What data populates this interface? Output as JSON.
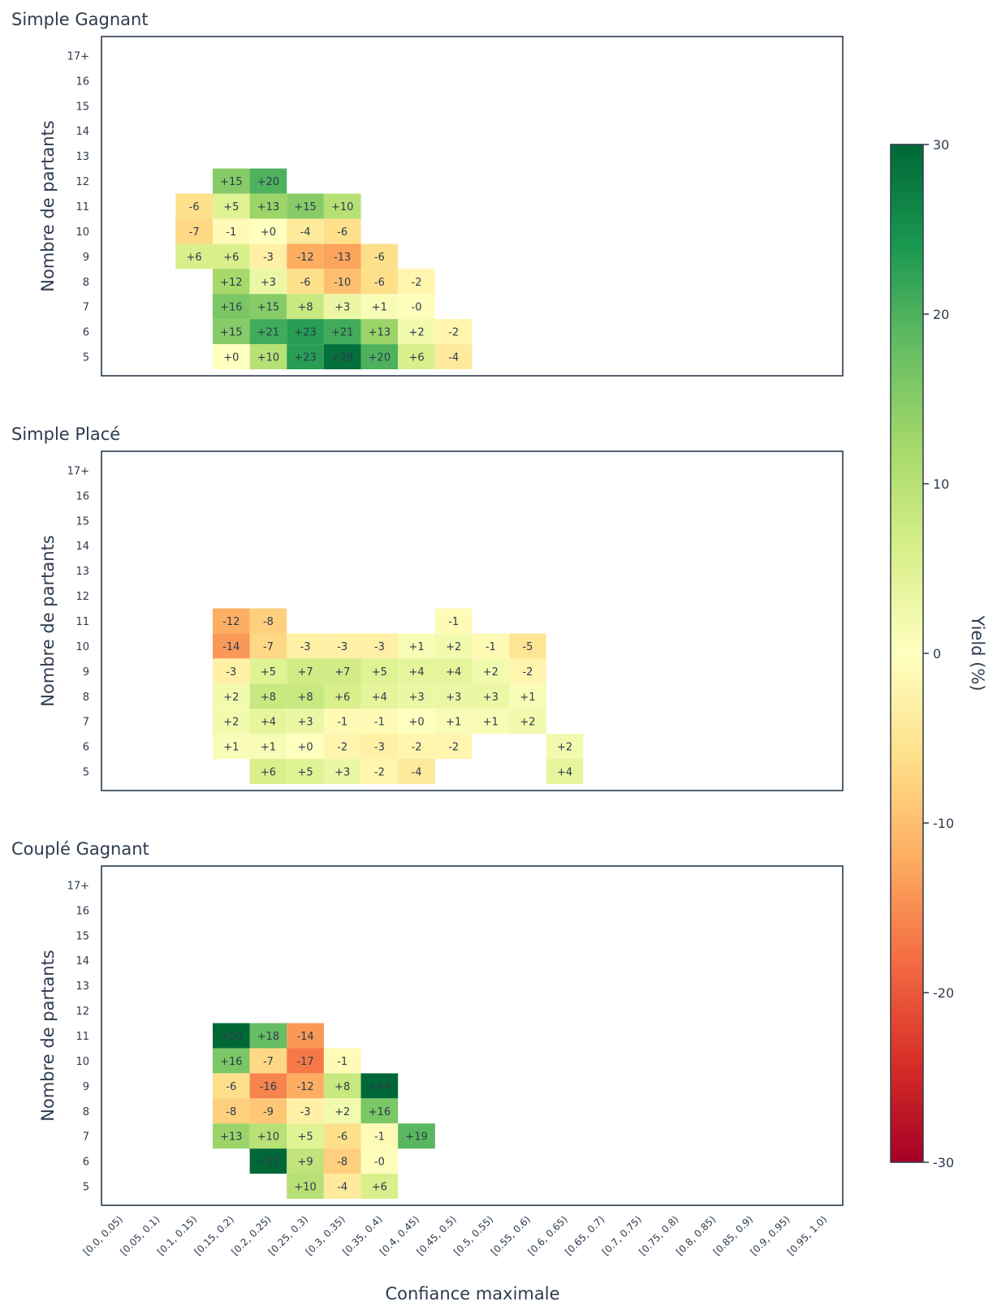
{
  "chart_data": {
    "type": "heatmap",
    "panels": [
      {
        "title": "Simple Gagnant",
        "ylabel": "Nombre de partants",
        "cells": [
          {
            "row": "12",
            "col": 3,
            "value": 15,
            "label": "+15"
          },
          {
            "row": "12",
            "col": 4,
            "value": 20,
            "label": "+20"
          },
          {
            "row": "11",
            "col": 2,
            "value": -6,
            "label": "-6"
          },
          {
            "row": "11",
            "col": 3,
            "value": 5,
            "label": "+5"
          },
          {
            "row": "11",
            "col": 4,
            "value": 13,
            "label": "+13"
          },
          {
            "row": "11",
            "col": 5,
            "value": 15,
            "label": "+15"
          },
          {
            "row": "11",
            "col": 6,
            "value": 10,
            "label": "+10"
          },
          {
            "row": "10",
            "col": 2,
            "value": -7,
            "label": "-7"
          },
          {
            "row": "10",
            "col": 3,
            "value": -1,
            "label": "-1"
          },
          {
            "row": "10",
            "col": 4,
            "value": 0,
            "label": "+0"
          },
          {
            "row": "10",
            "col": 5,
            "value": -4,
            "label": "-4"
          },
          {
            "row": "10",
            "col": 6,
            "value": -6,
            "label": "-6"
          },
          {
            "row": "9",
            "col": 2,
            "value": 6,
            "label": "+6"
          },
          {
            "row": "9",
            "col": 3,
            "value": 6,
            "label": "+6"
          },
          {
            "row": "9",
            "col": 4,
            "value": -3,
            "label": "-3"
          },
          {
            "row": "9",
            "col": 5,
            "value": -12,
            "label": "-12"
          },
          {
            "row": "9",
            "col": 6,
            "value": -13,
            "label": "-13"
          },
          {
            "row": "9",
            "col": 7,
            "value": -6,
            "label": "-6"
          },
          {
            "row": "8",
            "col": 3,
            "value": 12,
            "label": "+12"
          },
          {
            "row": "8",
            "col": 4,
            "value": 3,
            "label": "+3"
          },
          {
            "row": "8",
            "col": 5,
            "value": -6,
            "label": "-6"
          },
          {
            "row": "8",
            "col": 6,
            "value": -10,
            "label": "-10"
          },
          {
            "row": "8",
            "col": 7,
            "value": -6,
            "label": "-6"
          },
          {
            "row": "8",
            "col": 8,
            "value": -2,
            "label": "-2"
          },
          {
            "row": "7",
            "col": 3,
            "value": 16,
            "label": "+16"
          },
          {
            "row": "7",
            "col": 4,
            "value": 15,
            "label": "+15"
          },
          {
            "row": "7",
            "col": 5,
            "value": 8,
            "label": "+8"
          },
          {
            "row": "7",
            "col": 6,
            "value": 3,
            "label": "+3"
          },
          {
            "row": "7",
            "col": 7,
            "value": 1,
            "label": "+1"
          },
          {
            "row": "7",
            "col": 8,
            "value": -0.3,
            "label": "-0"
          },
          {
            "row": "6",
            "col": 3,
            "value": 15,
            "label": "+15"
          },
          {
            "row": "6",
            "col": 4,
            "value": 21,
            "label": "+21"
          },
          {
            "row": "6",
            "col": 5,
            "value": 23,
            "label": "+23"
          },
          {
            "row": "6",
            "col": 6,
            "value": 21,
            "label": "+21"
          },
          {
            "row": "6",
            "col": 7,
            "value": 13,
            "label": "+13"
          },
          {
            "row": "6",
            "col": 8,
            "value": 2,
            "label": "+2"
          },
          {
            "row": "6",
            "col": 9,
            "value": -2,
            "label": "-2"
          },
          {
            "row": "5",
            "col": 3,
            "value": 0,
            "label": "+0"
          },
          {
            "row": "5",
            "col": 4,
            "value": 10,
            "label": "+10"
          },
          {
            "row": "5",
            "col": 5,
            "value": 23,
            "label": "+23"
          },
          {
            "row": "5",
            "col": 6,
            "value": 29,
            "label": "+29"
          },
          {
            "row": "5",
            "col": 7,
            "value": 20,
            "label": "+20"
          },
          {
            "row": "5",
            "col": 8,
            "value": 6,
            "label": "+6"
          },
          {
            "row": "5",
            "col": 9,
            "value": -4,
            "label": "-4"
          }
        ]
      },
      {
        "title": "Simple Placé",
        "ylabel": "Nombre de partants",
        "cells": [
          {
            "row": "11",
            "col": 3,
            "value": -12,
            "label": "-12"
          },
          {
            "row": "11",
            "col": 4,
            "value": -8,
            "label": "-8"
          },
          {
            "row": "11",
            "col": 9,
            "value": -1,
            "label": "-1"
          },
          {
            "row": "10",
            "col": 3,
            "value": -14,
            "label": "-14"
          },
          {
            "row": "10",
            "col": 4,
            "value": -7,
            "label": "-7"
          },
          {
            "row": "10",
            "col": 5,
            "value": -3,
            "label": "-3"
          },
          {
            "row": "10",
            "col": 6,
            "value": -3,
            "label": "-3"
          },
          {
            "row": "10",
            "col": 7,
            "value": -3,
            "label": "-3"
          },
          {
            "row": "10",
            "col": 8,
            "value": 1,
            "label": "+1"
          },
          {
            "row": "10",
            "col": 9,
            "value": 2,
            "label": "+2"
          },
          {
            "row": "10",
            "col": 10,
            "value": -1,
            "label": "-1"
          },
          {
            "row": "10",
            "col": 11,
            "value": -5,
            "label": "-5"
          },
          {
            "row": "9",
            "col": 3,
            "value": -3,
            "label": "-3"
          },
          {
            "row": "9",
            "col": 4,
            "value": 5,
            "label": "+5"
          },
          {
            "row": "9",
            "col": 5,
            "value": 7,
            "label": "+7"
          },
          {
            "row": "9",
            "col": 6,
            "value": 7,
            "label": "+7"
          },
          {
            "row": "9",
            "col": 7,
            "value": 5,
            "label": "+5"
          },
          {
            "row": "9",
            "col": 8,
            "value": 4,
            "label": "+4"
          },
          {
            "row": "9",
            "col": 9,
            "value": 4,
            "label": "+4"
          },
          {
            "row": "9",
            "col": 10,
            "value": 2,
            "label": "+2"
          },
          {
            "row": "9",
            "col": 11,
            "value": -2,
            "label": "-2"
          },
          {
            "row": "8",
            "col": 3,
            "value": 2,
            "label": "+2"
          },
          {
            "row": "8",
            "col": 4,
            "value": 8,
            "label": "+8"
          },
          {
            "row": "8",
            "col": 5,
            "value": 8,
            "label": "+8"
          },
          {
            "row": "8",
            "col": 6,
            "value": 6,
            "label": "+6"
          },
          {
            "row": "8",
            "col": 7,
            "value": 4,
            "label": "+4"
          },
          {
            "row": "8",
            "col": 8,
            "value": 3,
            "label": "+3"
          },
          {
            "row": "8",
            "col": 9,
            "value": 3,
            "label": "+3"
          },
          {
            "row": "8",
            "col": 10,
            "value": 3,
            "label": "+3"
          },
          {
            "row": "8",
            "col": 11,
            "value": 1,
            "label": "+1"
          },
          {
            "row": "7",
            "col": 3,
            "value": 2,
            "label": "+2"
          },
          {
            "row": "7",
            "col": 4,
            "value": 4,
            "label": "+4"
          },
          {
            "row": "7",
            "col": 5,
            "value": 3,
            "label": "+3"
          },
          {
            "row": "7",
            "col": 6,
            "value": -1,
            "label": "-1"
          },
          {
            "row": "7",
            "col": 7,
            "value": -1,
            "label": "-1"
          },
          {
            "row": "7",
            "col": 8,
            "value": 0,
            "label": "+0"
          },
          {
            "row": "7",
            "col": 9,
            "value": 1,
            "label": "+1"
          },
          {
            "row": "7",
            "col": 10,
            "value": 1,
            "label": "+1"
          },
          {
            "row": "7",
            "col": 11,
            "value": 2,
            "label": "+2"
          },
          {
            "row": "6",
            "col": 3,
            "value": 1,
            "label": "+1"
          },
          {
            "row": "6",
            "col": 4,
            "value": 1,
            "label": "+1"
          },
          {
            "row": "6",
            "col": 5,
            "value": 0,
            "label": "+0"
          },
          {
            "row": "6",
            "col": 6,
            "value": -2,
            "label": "-2"
          },
          {
            "row": "6",
            "col": 7,
            "value": -3,
            "label": "-3"
          },
          {
            "row": "6",
            "col": 8,
            "value": -2,
            "label": "-2"
          },
          {
            "row": "6",
            "col": 9,
            "value": -2,
            "label": "-2"
          },
          {
            "row": "6",
            "col": 12,
            "value": 2,
            "label": "+2"
          },
          {
            "row": "5",
            "col": 4,
            "value": 6,
            "label": "+6"
          },
          {
            "row": "5",
            "col": 5,
            "value": 5,
            "label": "+5"
          },
          {
            "row": "5",
            "col": 6,
            "value": 3,
            "label": "+3"
          },
          {
            "row": "5",
            "col": 7,
            "value": -2,
            "label": "-2"
          },
          {
            "row": "5",
            "col": 8,
            "value": -4,
            "label": "-4"
          },
          {
            "row": "5",
            "col": 12,
            "value": 4,
            "label": "+4"
          }
        ]
      },
      {
        "title": "Couplé Gagnant",
        "ylabel": "Nombre de partants",
        "cells": [
          {
            "row": "11",
            "col": 3,
            "value": 50,
            "label": "+50"
          },
          {
            "row": "11",
            "col": 4,
            "value": 18,
            "label": "+18"
          },
          {
            "row": "11",
            "col": 5,
            "value": -14,
            "label": "-14"
          },
          {
            "row": "10",
            "col": 3,
            "value": 16,
            "label": "+16"
          },
          {
            "row": "10",
            "col": 4,
            "value": -7,
            "label": "-7"
          },
          {
            "row": "10",
            "col": 5,
            "value": -17,
            "label": "-17"
          },
          {
            "row": "10",
            "col": 6,
            "value": -1,
            "label": "-1"
          },
          {
            "row": "9",
            "col": 3,
            "value": -6,
            "label": "-6"
          },
          {
            "row": "9",
            "col": 4,
            "value": -16,
            "label": "-16"
          },
          {
            "row": "9",
            "col": 5,
            "value": -12,
            "label": "-12"
          },
          {
            "row": "9",
            "col": 6,
            "value": 8,
            "label": "+8"
          },
          {
            "row": "9",
            "col": 7,
            "value": 44,
            "label": "+44"
          },
          {
            "row": "8",
            "col": 3,
            "value": -8,
            "label": "-8"
          },
          {
            "row": "8",
            "col": 4,
            "value": -9,
            "label": "-9"
          },
          {
            "row": "8",
            "col": 5,
            "value": -3,
            "label": "-3"
          },
          {
            "row": "8",
            "col": 6,
            "value": 2,
            "label": "+2"
          },
          {
            "row": "8",
            "col": 7,
            "value": 16,
            "label": "+16"
          },
          {
            "row": "7",
            "col": 3,
            "value": 13,
            "label": "+13"
          },
          {
            "row": "7",
            "col": 4,
            "value": 10,
            "label": "+10"
          },
          {
            "row": "7",
            "col": 5,
            "value": 5,
            "label": "+5"
          },
          {
            "row": "7",
            "col": 6,
            "value": -6,
            "label": "-6"
          },
          {
            "row": "7",
            "col": 7,
            "value": -1,
            "label": "-1"
          },
          {
            "row": "7",
            "col": 8,
            "value": 19,
            "label": "+19"
          },
          {
            "row": "6",
            "col": 4,
            "value": 32,
            "label": "+32"
          },
          {
            "row": "6",
            "col": 5,
            "value": 9,
            "label": "+9"
          },
          {
            "row": "6",
            "col": 6,
            "value": -8,
            "label": "-8"
          },
          {
            "row": "6",
            "col": 7,
            "value": -0.3,
            "label": "-0"
          },
          {
            "row": "5",
            "col": 5,
            "value": 10,
            "label": "+10"
          },
          {
            "row": "5",
            "col": 6,
            "value": -4,
            "label": "-4"
          },
          {
            "row": "5",
            "col": 7,
            "value": 6,
            "label": "+6"
          }
        ]
      }
    ],
    "y_categories": [
      "17+",
      "16",
      "15",
      "14",
      "13",
      "12",
      "11",
      "10",
      "9",
      "8",
      "7",
      "6",
      "5"
    ],
    "x_categories": [
      "[0.0, 0.05)",
      "[0.05, 0.1)",
      "[0.1, 0.15)",
      "[0.15, 0.2)",
      "[0.2, 0.25)",
      "[0.25, 0.3)",
      "[0.3, 0.35)",
      "[0.35, 0.4)",
      "[0.4, 0.45)",
      "[0.45, 0.5)",
      "[0.5, 0.55)",
      "[0.55, 0.6)",
      "[0.6, 0.65)",
      "[0.65, 0.7)",
      "[0.7, 0.75)",
      "[0.75, 0.8)",
      "[0.8, 0.85)",
      "[0.85, 0.9)",
      "[0.9, 0.95)",
      "[0.95, 1.0)"
    ],
    "xlabel": "Confiance maximale",
    "colorbar": {
      "label": "Yield (%)",
      "range": [
        -30,
        30
      ],
      "ticks": [
        "30",
        "20",
        "10",
        "0",
        "-10",
        "-20",
        "-30"
      ],
      "colormap": "RdYlGn",
      "stops": [
        "#a50026",
        "#d73027",
        "#f46d43",
        "#fdae61",
        "#fee08b",
        "#ffffbf",
        "#d9ef8b",
        "#a6d96a",
        "#66bd63",
        "#1a9850",
        "#006837"
      ]
    },
    "grid": false
  }
}
